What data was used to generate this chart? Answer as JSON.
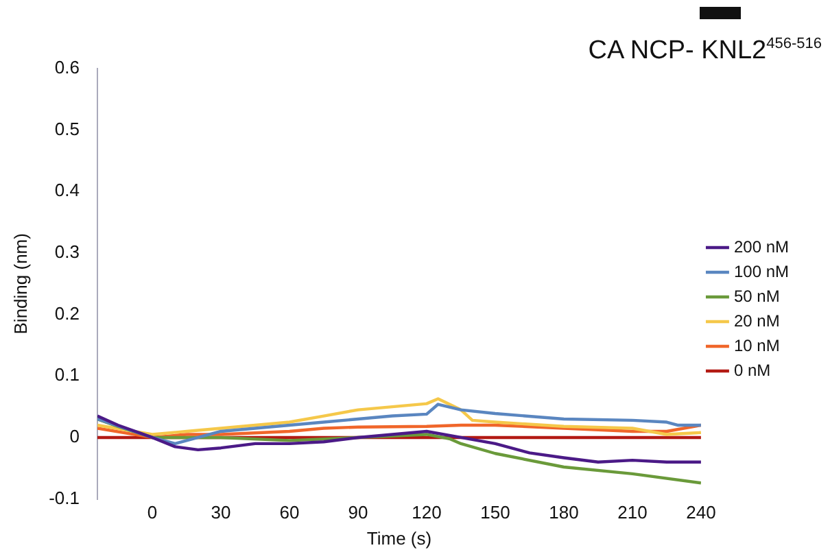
{
  "chart_data": {
    "type": "line",
    "title": "CA NCP- KNL2$^{456-516}$",
    "xlabel": "Time (s)",
    "ylabel": "Binding (nm)",
    "xlim": [
      -24,
      240
    ],
    "xticks": [
      0,
      30,
      60,
      90,
      120,
      150,
      180,
      210,
      240
    ],
    "ylim": [
      -0.1,
      0.6
    ],
    "yticks": [
      -0.1,
      0,
      0.1,
      0.2,
      0.3,
      0.4,
      0.5,
      0.6
    ],
    "grid": false,
    "legend": "right",
    "marker": "none",
    "line_style": "solid",
    "series": [
      {
        "name": "200 nM",
        "color": "#4b1a87",
        "x": [
          -24,
          -15,
          0,
          10,
          20,
          30,
          45,
          60,
          75,
          90,
          105,
          120,
          135,
          150,
          165,
          180,
          195,
          210,
          225,
          240
        ],
        "values": [
          0.035,
          0.02,
          0,
          -0.015,
          -0.02,
          -0.017,
          -0.01,
          -0.01,
          -0.007,
          0,
          0.005,
          0.01,
          0,
          -0.01,
          -0.025,
          -0.033,
          -0.04,
          -0.037,
          -0.04,
          -0.04
        ]
      },
      {
        "name": "100 nM",
        "color": "#5a86c0",
        "x": [
          -24,
          0,
          10,
          20,
          30,
          60,
          75,
          90,
          105,
          120,
          125,
          135,
          150,
          180,
          210,
          225,
          230,
          240
        ],
        "values": [
          0.03,
          0,
          -0.01,
          0,
          0.01,
          0.02,
          0.025,
          0.03,
          0.035,
          0.038,
          0.054,
          0.045,
          0.039,
          0.03,
          0.028,
          0.025,
          0.02,
          0.02
        ]
      },
      {
        "name": "50 nM",
        "color": "#6a9a3a",
        "x": [
          -24,
          -15,
          0,
          30,
          60,
          90,
          120,
          130,
          135,
          150,
          180,
          210,
          240
        ],
        "values": [
          0.03,
          0.018,
          0,
          0,
          -0.005,
          0,
          0.005,
          -0.002,
          -0.01,
          -0.026,
          -0.048,
          -0.059,
          -0.074
        ]
      },
      {
        "name": "20 nM",
        "color": "#f5c84a",
        "x": [
          -24,
          0,
          15,
          30,
          60,
          75,
          90,
          105,
          120,
          125,
          135,
          140,
          150,
          180,
          210,
          225,
          240
        ],
        "values": [
          0.02,
          0.005,
          0.01,
          0.015,
          0.025,
          0.035,
          0.045,
          0.05,
          0.055,
          0.063,
          0.045,
          0.028,
          0.025,
          0.018,
          0.015,
          0.005,
          0.008
        ]
      },
      {
        "name": "10 nM",
        "color": "#f0662a",
        "x": [
          -24,
          0,
          15,
          30,
          60,
          75,
          90,
          120,
          135,
          150,
          180,
          210,
          225,
          240
        ],
        "values": [
          0.015,
          0,
          0.005,
          0.005,
          0.01,
          0.015,
          0.017,
          0.018,
          0.02,
          0.02,
          0.015,
          0.01,
          0.01,
          0.02
        ]
      },
      {
        "name": "0 nM",
        "color": "#b31a14",
        "x": [
          -24,
          240
        ],
        "values": [
          0,
          0
        ]
      }
    ]
  }
}
